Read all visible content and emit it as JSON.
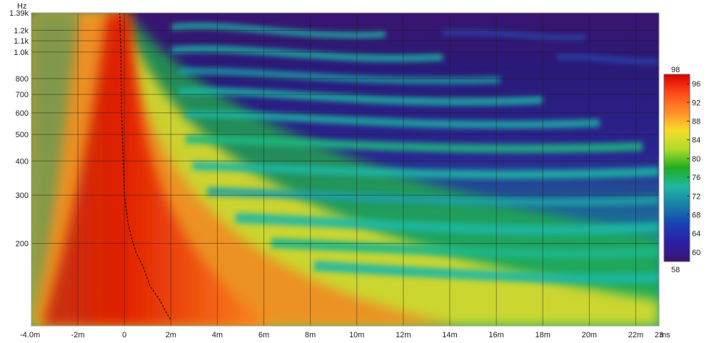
{
  "chart_data": {
    "type": "heatmap",
    "title": "",
    "xlabel": "",
    "ylabel": "",
    "x_unit": "ms",
    "y_unit": "Hz",
    "xlim": [
      -4.0,
      23
    ],
    "ylim": [
      100,
      1390
    ],
    "y_scale": "log",
    "grid": true,
    "x_ticks": [
      {
        "v": -4,
        "label": "-4.0m"
      },
      {
        "v": -2,
        "label": "-2m"
      },
      {
        "v": 0,
        "label": "0"
      },
      {
        "v": 2,
        "label": "2m"
      },
      {
        "v": 4,
        "label": "4m"
      },
      {
        "v": 6,
        "label": "6m"
      },
      {
        "v": 8,
        "label": "8m"
      },
      {
        "v": 10,
        "label": "10m"
      },
      {
        "v": 12,
        "label": "12m"
      },
      {
        "v": 14,
        "label": "14m"
      },
      {
        "v": 16,
        "label": "16m"
      },
      {
        "v": 18,
        "label": "18m"
      },
      {
        "v": 20,
        "label": "20m"
      },
      {
        "v": 22,
        "label": "22m"
      },
      {
        "v": 23,
        "label": "23"
      }
    ],
    "y_ticks": [
      {
        "v": 1390,
        "label": "1.39k"
      },
      {
        "v": 1200,
        "label": "1.2k"
      },
      {
        "v": 1100,
        "label": "1.1k"
      },
      {
        "v": 1000,
        "label": "1.0k"
      },
      {
        "v": 800,
        "label": "800"
      },
      {
        "v": 700,
        "label": "700"
      },
      {
        "v": 600,
        "label": "600"
      },
      {
        "v": 500,
        "label": "500"
      },
      {
        "v": 400,
        "label": "400"
      },
      {
        "v": 300,
        "label": "300"
      },
      {
        "v": 200,
        "label": "200"
      }
    ],
    "colorbar": {
      "min": 58,
      "max": 98,
      "ticks": [
        96,
        92,
        88,
        84,
        80,
        76,
        72,
        68,
        64,
        60
      ],
      "min_label": "58",
      "max_label": "98",
      "stops": [
        "#da0000",
        "#ff4a1a",
        "#ff8c28",
        "#f7dc2a",
        "#aedc2a",
        "#1fae1f",
        "#1fb7a5",
        "#1880a6",
        "#1840b2",
        "#2e1fa5",
        "#3a1470"
      ]
    },
    "peak_energy_curve": [
      [
        -0.2,
        1390
      ],
      [
        -0.15,
        1000
      ],
      [
        -0.12,
        600
      ],
      [
        -0.05,
        400
      ],
      [
        0.0,
        300
      ],
      [
        0.15,
        240
      ],
      [
        0.3,
        210
      ],
      [
        0.5,
        185
      ],
      [
        0.8,
        165
      ],
      [
        1.1,
        140
      ],
      [
        1.5,
        125
      ],
      [
        1.8,
        112
      ],
      [
        2.0,
        105
      ]
    ]
  },
  "axis_labels": {
    "y_unit_label": "Hz",
    "x_end_label": "ms"
  }
}
